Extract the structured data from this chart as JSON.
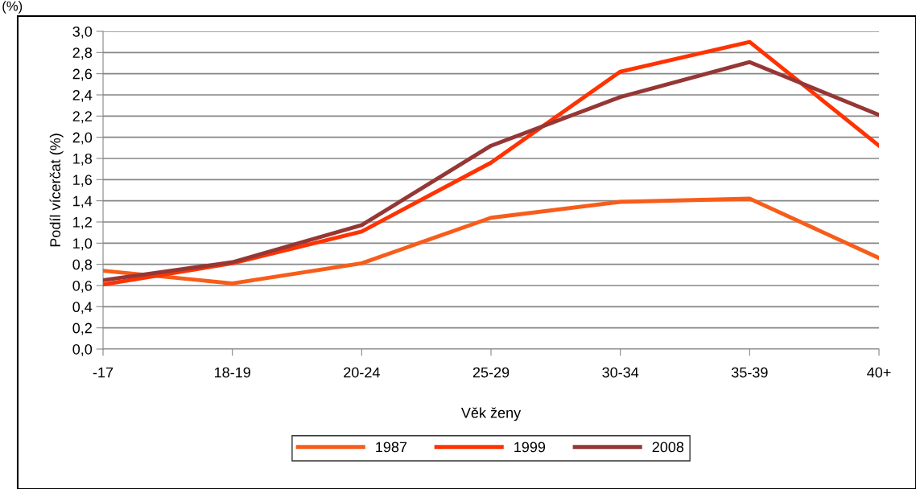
{
  "chart_data": {
    "type": "line",
    "xlabel": "Věk ženy",
    "ylabel": "Podíl vícerčat (%)",
    "annotations": [
      "(%)"
    ],
    "categories": [
      "-17",
      "18-19",
      "20-24",
      "25-29",
      "30-34",
      "35-39",
      "40+"
    ],
    "series": [
      {
        "name": "1987",
        "color": "#f75d1a",
        "values": [
          0.74,
          0.62,
          0.81,
          1.24,
          1.39,
          1.42,
          0.86
        ]
      },
      {
        "name": "1999",
        "color": "#ff3300",
        "values": [
          0.61,
          0.81,
          1.11,
          1.76,
          2.62,
          2.9,
          1.92
        ]
      },
      {
        "name": "2008",
        "color": "#953735",
        "values": [
          0.65,
          0.82,
          1.17,
          1.92,
          2.38,
          2.71,
          2.21
        ]
      }
    ],
    "ylim": [
      0,
      3.0
    ],
    "yticks": [
      {
        "value": 0,
        "label": "0,0"
      },
      {
        "value": 0.2,
        "label": "0,2"
      },
      {
        "value": 0.4,
        "label": "0,4"
      },
      {
        "value": 0.6,
        "label": "0,6"
      },
      {
        "value": 0.8,
        "label": "0,8"
      },
      {
        "value": 1.0,
        "label": "1,0"
      },
      {
        "value": 1.2,
        "label": "1,2"
      },
      {
        "value": 1.4,
        "label": "1,4"
      },
      {
        "value": 1.6,
        "label": "1,6"
      },
      {
        "value": 1.8,
        "label": "1,8"
      },
      {
        "value": 2.0,
        "label": "2,0"
      },
      {
        "value": 2.2,
        "label": "2,2"
      },
      {
        "value": 2.4,
        "label": "2,4"
      },
      {
        "value": 2.6,
        "label": "2,6"
      },
      {
        "value": 2.8,
        "label": "2,8"
      },
      {
        "value": 3.0,
        "label": "3,0"
      }
    ],
    "grid": "y",
    "legend": "bottom",
    "marker": "none",
    "line_style": "solid"
  }
}
